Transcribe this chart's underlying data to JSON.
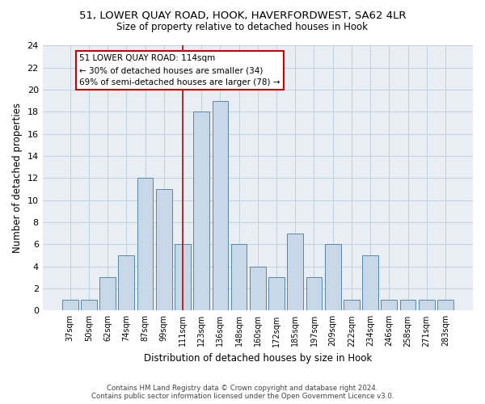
{
  "title": "51, LOWER QUAY ROAD, HOOK, HAVERFORDWEST, SA62 4LR",
  "subtitle": "Size of property relative to detached houses in Hook",
  "xlabel": "Distribution of detached houses by size in Hook",
  "ylabel": "Number of detached properties",
  "categories": [
    "37sqm",
    "50sqm",
    "62sqm",
    "74sqm",
    "87sqm",
    "99sqm",
    "111sqm",
    "123sqm",
    "136sqm",
    "148sqm",
    "160sqm",
    "172sqm",
    "185sqm",
    "197sqm",
    "209sqm",
    "222sqm",
    "234sqm",
    "246sqm",
    "258sqm",
    "271sqm",
    "283sqm"
  ],
  "values": [
    1,
    1,
    3,
    5,
    12,
    11,
    6,
    18,
    19,
    6,
    4,
    3,
    7,
    3,
    6,
    1,
    5,
    1,
    1,
    1,
    1
  ],
  "bar_color": "#c8d8e8",
  "bar_edge_color": "#5588aa",
  "highlight_index": 6,
  "annotation_line1": "51 LOWER QUAY ROAD: 114sqm",
  "annotation_line2": "← 30% of detached houses are smaller (34)",
  "annotation_line3": "69% of semi-detached houses are larger (78) →",
  "annotation_box_color": "#ffffff",
  "annotation_box_edge": "#cc0000",
  "ylim": [
    0,
    24
  ],
  "yticks": [
    0,
    2,
    4,
    6,
    8,
    10,
    12,
    14,
    16,
    18,
    20,
    22,
    24
  ],
  "grid_color": "#bbccdd",
  "background_color": "#e8eef4",
  "footer_line1": "Contains HM Land Registry data © Crown copyright and database right 2024.",
  "footer_line2": "Contains public sector information licensed under the Open Government Licence v3.0."
}
